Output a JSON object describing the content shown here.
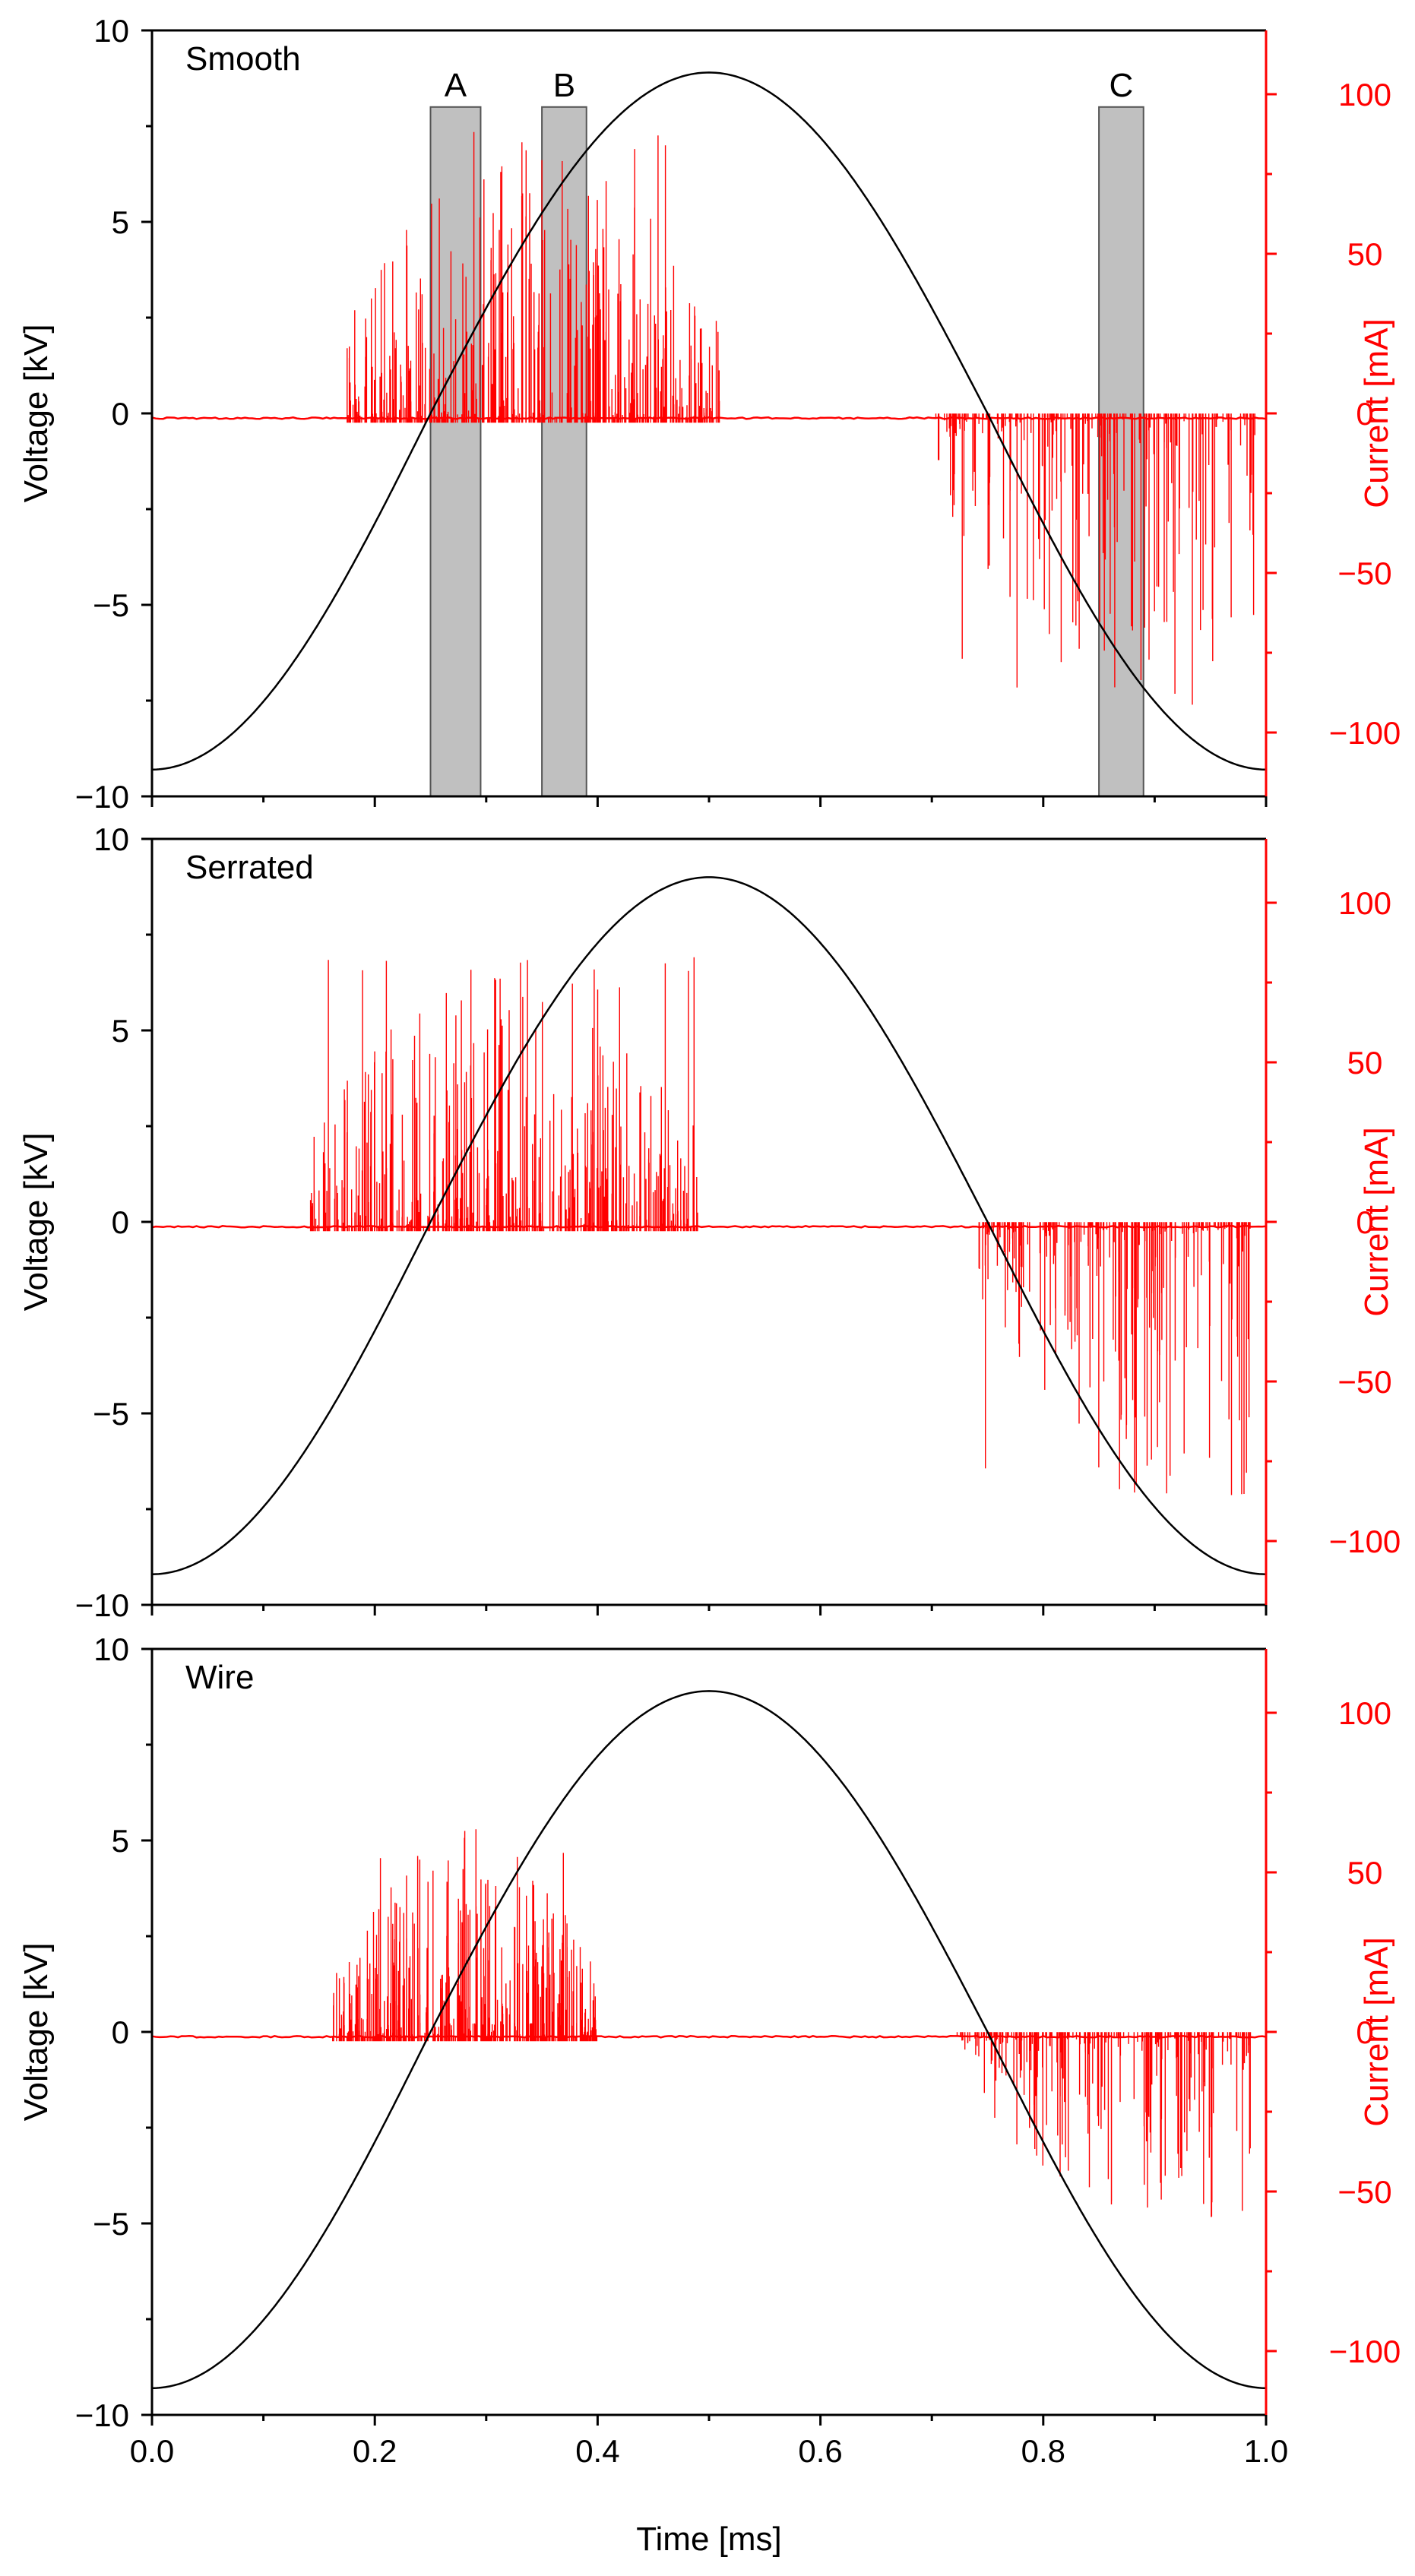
{
  "chart_data": [
    {
      "type": "line",
      "title": "Smooth",
      "xlabel": "",
      "ylabel": "Voltage [kV]",
      "y2label": "Current [mA]",
      "xlim": [
        0.0,
        1.0
      ],
      "ylim": [
        -10,
        10
      ],
      "y2lim": [
        -120,
        120
      ],
      "x_ticks": [
        0.0,
        0.2,
        0.4,
        0.6,
        0.8,
        1.0
      ],
      "x_tick_labels": [],
      "y_ticks": [
        -10,
        -5,
        0,
        5,
        10
      ],
      "y_tick_labels": [
        "−10",
        "−5",
        "0",
        "5",
        "10"
      ],
      "y2_ticks": [
        -100,
        -50,
        0,
        50,
        100
      ],
      "y2_tick_labels": [
        "−100",
        "−50",
        "0",
        "50",
        "100"
      ],
      "voltage": {
        "name": "Voltage",
        "color": "#000000",
        "amplitude_kv": 8.9,
        "minimum_kv": -9.3,
        "peak_time_ms": 0.5,
        "zero_crossings_ms": [
          0.25,
          0.75
        ]
      },
      "current": {
        "name": "Current",
        "color": "#ff0000",
        "baseline_ma": -1.5,
        "positive_activity_ms": [
          0.175,
          0.51
        ],
        "negative_activity_ms": [
          0.7,
          0.99
        ],
        "max_positive_ma": 90,
        "max_negative_ma": -90
      },
      "regions": [
        {
          "label": "A",
          "x_start": 0.25,
          "x_end": 0.295,
          "y_top": 8.0
        },
        {
          "label": "B",
          "x_start": 0.35,
          "x_end": 0.39,
          "y_top": 8.0
        },
        {
          "label": "C",
          "x_start": 0.85,
          "x_end": 0.89,
          "y_top": 8.0
        }
      ]
    },
    {
      "type": "line",
      "title": "Serrated",
      "xlabel": "",
      "ylabel": "Voltage [kV]",
      "y2label": "Current [mA]",
      "xlim": [
        0.0,
        1.0
      ],
      "ylim": [
        -10,
        10
      ],
      "y2lim": [
        -120,
        120
      ],
      "x_ticks": [
        0.0,
        0.2,
        0.4,
        0.6,
        0.8,
        1.0
      ],
      "x_tick_labels": [],
      "y_ticks": [
        -10,
        -5,
        0,
        5,
        10
      ],
      "y_tick_labels": [
        "−10",
        "−5",
        "0",
        "5",
        "10"
      ],
      "y2_ticks": [
        -100,
        -50,
        0,
        50,
        100
      ],
      "y2_tick_labels": [
        "−100",
        "−50",
        "0",
        "50",
        "100"
      ],
      "voltage": {
        "name": "Voltage",
        "color": "#000000",
        "amplitude_kv": 9.0,
        "minimum_kv": -9.2,
        "peak_time_ms": 0.5,
        "zero_crossings_ms": [
          0.25,
          0.75
        ]
      },
      "current": {
        "name": "Current",
        "color": "#ff0000",
        "baseline_ma": -1.5,
        "positive_activity_ms": [
          0.14,
          0.49
        ],
        "negative_activity_ms": [
          0.74,
          0.99
        ],
        "max_positive_ma": 85,
        "max_negative_ma": -85
      },
      "regions": []
    },
    {
      "type": "line",
      "title": "Wire",
      "xlabel": "Time [ms]",
      "ylabel": "Voltage [kV]",
      "y2label": "Current [mA]",
      "xlim": [
        0.0,
        1.0
      ],
      "ylim": [
        -10,
        10
      ],
      "y2lim": [
        -120,
        120
      ],
      "x_ticks": [
        0.0,
        0.2,
        0.4,
        0.6,
        0.8,
        1.0
      ],
      "x_tick_labels": [
        "0.0",
        "0.2",
        "0.4",
        "0.6",
        "0.8",
        "1.0"
      ],
      "y_ticks": [
        -10,
        -5,
        0,
        5,
        10
      ],
      "y_tick_labels": [
        "−10",
        "−5",
        "0",
        "5",
        "10"
      ],
      "y2_ticks": [
        -100,
        -50,
        0,
        50,
        100
      ],
      "y2_tick_labels": [
        "−100",
        "−50",
        "0",
        "50",
        "100"
      ],
      "voltage": {
        "name": "Voltage",
        "color": "#000000",
        "amplitude_kv": 8.9,
        "minimum_kv": -9.3,
        "peak_time_ms": 0.5,
        "zero_crossings_ms": [
          0.25,
          0.75
        ]
      },
      "current": {
        "name": "Current",
        "color": "#ff0000",
        "baseline_ma": -1.5,
        "positive_activity_ms": [
          0.16,
          0.4
        ],
        "negative_activity_ms": [
          0.72,
          0.99
        ],
        "max_positive_ma": 65,
        "max_negative_ma": -58
      },
      "regions": []
    }
  ]
}
